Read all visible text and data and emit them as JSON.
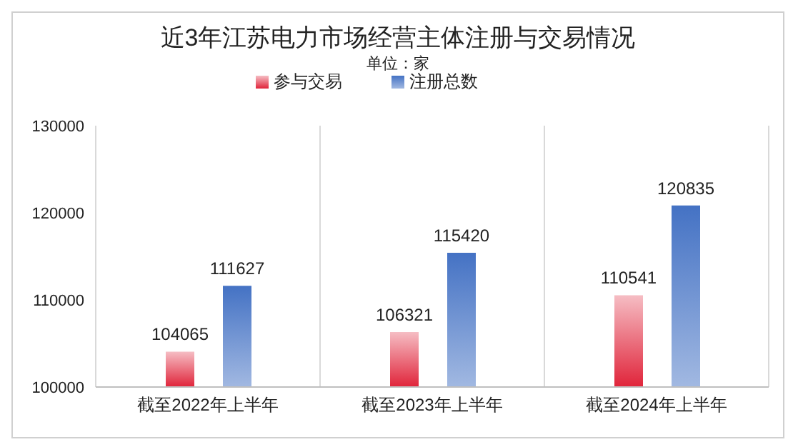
{
  "chart_data": {
    "type": "bar",
    "title": "近3年江苏电力市场经营主体注册与交易情况",
    "subtitle": "单位：家",
    "categories": [
      "截至2022年上半年",
      "截至2023年上半年",
      "截至2024年上半年"
    ],
    "series": [
      {
        "name": "参与交易",
        "color": "#e0243a",
        "values": [
          104065,
          106321,
          110541
        ]
      },
      {
        "name": "注册总数",
        "color": "#4472c4",
        "values": [
          111627,
          115420,
          120835
        ]
      }
    ],
    "ylim": [
      100000,
      130000
    ],
    "yticks": [
      100000,
      110000,
      120000,
      130000
    ],
    "grid": "x",
    "legend": "top",
    "data_labels": true
  }
}
